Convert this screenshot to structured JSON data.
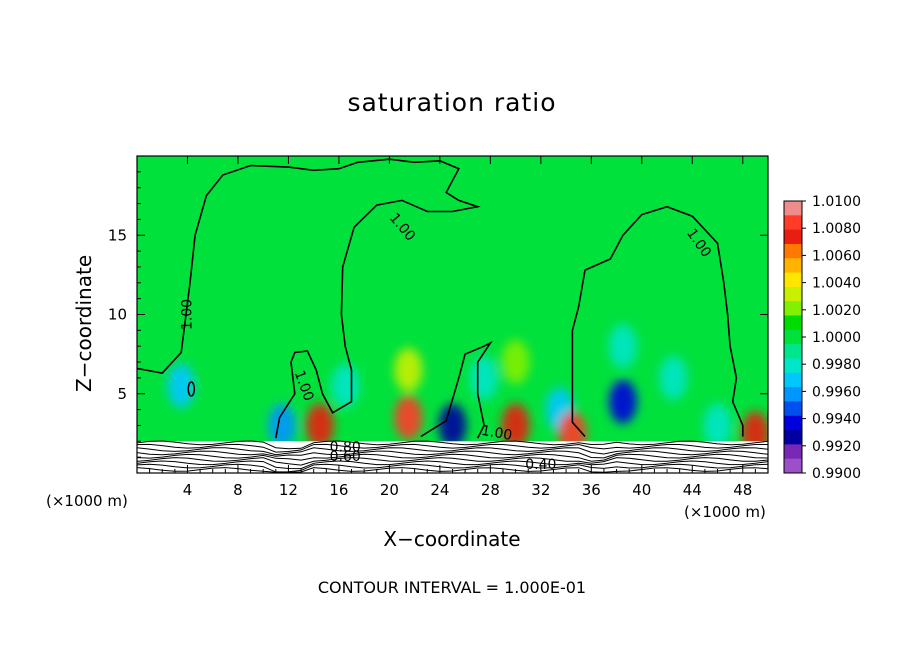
{
  "chart_data": {
    "type": "heatmap",
    "title": "saturation ratio",
    "xlabel": "X−coordinate",
    "ylabel": "Z−coordinate",
    "x_unit": "(×1000 m)",
    "xlim": [
      0,
      50
    ],
    "ylim": [
      0,
      20
    ],
    "x_ticks": [
      4,
      8,
      12,
      16,
      20,
      24,
      28,
      32,
      36,
      40,
      44,
      48
    ],
    "y_ticks": [
      5,
      10,
      15
    ],
    "colorbar": {
      "ticks": [
        "1.0100",
        "1.0080",
        "1.0060",
        "1.0040",
        "1.0020",
        "1.0000",
        "0.9980",
        "0.9960",
        "0.9940",
        "0.9920",
        "0.9900"
      ],
      "colors": [
        "#f08c8c",
        "#ff3c28",
        "#e81e10",
        "#ff7800",
        "#ffb400",
        "#ffe600",
        "#c8f000",
        "#82f000",
        "#00dc00",
        "#00e13c",
        "#00e68c",
        "#00e6c8",
        "#00c8ff",
        "#0096ff",
        "#0050f0",
        "#0000dc",
        "#0000a0",
        "#7828b4",
        "#9c50c8"
      ]
    },
    "contour_labels": [
      "1.00",
      "1.00",
      "1.00",
      "1.00",
      "1.00",
      "0.80",
      "0.60",
      "0.40"
    ],
    "contour_interval": "CONTOUR INTERVAL = 1.000E-01",
    "background_value": 1.0,
    "features": [
      {
        "x": 3.5,
        "z": 5.5,
        "value": 0.997
      },
      {
        "x": 11.5,
        "z": 3.0,
        "value": 0.9955
      },
      {
        "x": 14.5,
        "z": 3.0,
        "value": 1.007
      },
      {
        "x": 16.5,
        "z": 5.5,
        "value": 0.998
      },
      {
        "x": 21.5,
        "z": 3.5,
        "value": 1.008
      },
      {
        "x": 21.5,
        "z": 6.5,
        "value": 1.003
      },
      {
        "x": 25.0,
        "z": 3.0,
        "value": 0.993
      },
      {
        "x": 27.5,
        "z": 6.0,
        "value": 0.998
      },
      {
        "x": 30.0,
        "z": 3.0,
        "value": 1.007
      },
      {
        "x": 30.0,
        "z": 7.0,
        "value": 1.002
      },
      {
        "x": 33.5,
        "z": 4.0,
        "value": 0.997
      },
      {
        "x": 34.5,
        "z": 2.5,
        "value": 1.008
      },
      {
        "x": 38.5,
        "z": 4.5,
        "value": 0.994
      },
      {
        "x": 38.5,
        "z": 8.0,
        "value": 0.998
      },
      {
        "x": 42.5,
        "z": 6.0,
        "value": 0.9975
      },
      {
        "x": 46.0,
        "z": 3.0,
        "value": 0.9975
      },
      {
        "x": 49.0,
        "z": 2.5,
        "value": 1.007
      }
    ]
  }
}
